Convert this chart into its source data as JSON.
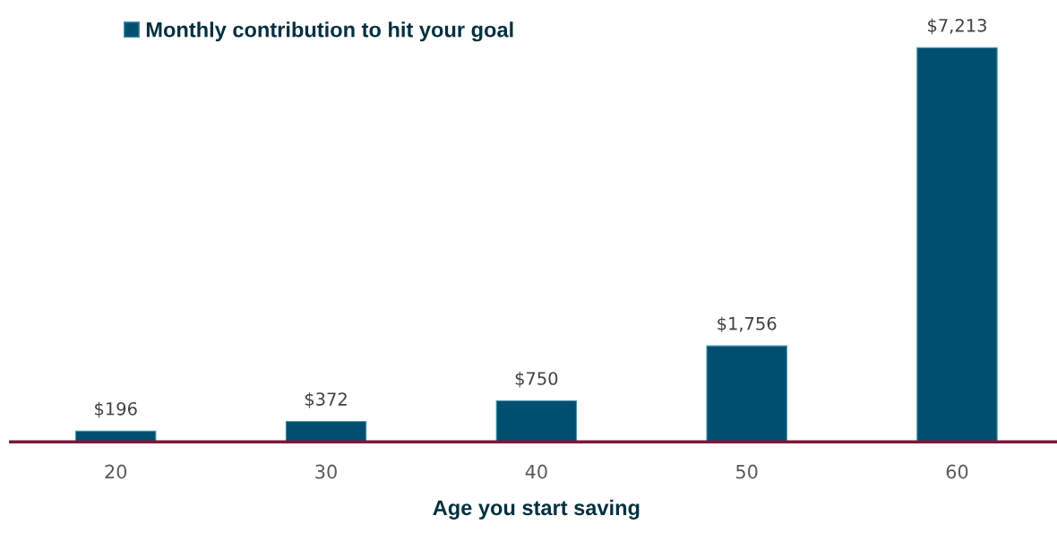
{
  "chart_data": {
    "type": "bar",
    "xlabel": "Age you start saving",
    "categories": [
      "20",
      "30",
      "40",
      "50",
      "60"
    ],
    "series": [
      {
        "name": "Monthly contribution to hit your goal",
        "color": "#004f71",
        "values": [
          196,
          372,
          750,
          1756,
          7213
        ],
        "value_labels": [
          "$196",
          "$372",
          "$750",
          "$1,756",
          "$7,213"
        ]
      }
    ],
    "legend": "top left",
    "grid": false
  }
}
